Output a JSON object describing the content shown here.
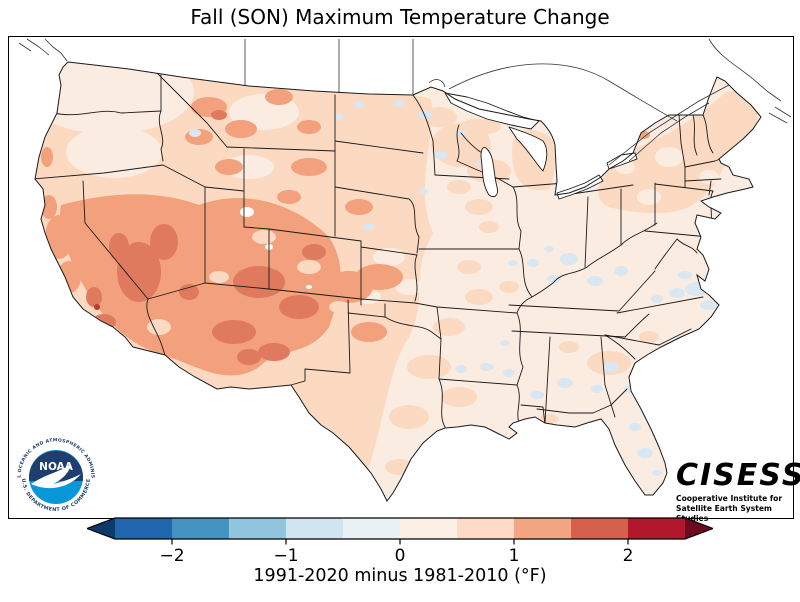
{
  "title": "Fall (SON) Maximum Temperature Change",
  "colorbar": {
    "tick_labels": [
      "−2",
      "−1",
      "0",
      "1",
      "2"
    ],
    "levels": [
      -2.5,
      -2,
      -1.5,
      -1,
      -0.5,
      0,
      0.5,
      1,
      1.5,
      2,
      2.5
    ],
    "segments": [
      "#2166ac",
      "#4393c3",
      "#92c5de",
      "#d1e5f0",
      "#eaf1f5",
      "#fcefe6",
      "#fddbc7",
      "#f4a582",
      "#d6604d",
      "#b2182b"
    ],
    "under_color": "#0b3a6b",
    "over_color": "#6d0a1e",
    "caption": "1991-2020 minus 1981-2010 (°F)"
  },
  "noaa_logo": {
    "acronym": "NOAA",
    "top_text": "NATIONAL OCEANIC AND ATMOSPHERIC ADMINISTRATION",
    "bottom_text": "U.S. DEPARTMENT OF COMMERCE",
    "dark_color": "#1d3e6f",
    "light_color": "#0a97d9"
  },
  "cisess_logo": {
    "acronym": "CISESS",
    "line1": "Cooperative Institute for",
    "line2": "Satellite Earth System Studies"
  },
  "chart_data": {
    "type": "choropleth_map",
    "title": "Fall (SON) Maximum Temperature Change",
    "variable": "Maximum temperature change, 1991-2020 normals minus 1981-2010 normals",
    "season": "SON (September-October-November)",
    "units": "°F",
    "region_shown": "Contiguous United States",
    "colormap": "RdBu_r (discrete, 0.5 °F bins, extended both ends)",
    "value_range": [
      -2.5,
      2.5
    ],
    "colorbar_ticks": [
      -2,
      -1,
      0,
      1,
      2
    ],
    "regions": [
      {
        "region": "Pacific Northwest (WA, N Idaho, NW Montana)",
        "approx_change_F": 0.25
      },
      {
        "region": "Great Basin / Southwest (NV, UT, CO, AZ, NM, S & coastal CA)",
        "approx_change_F": 1.4
      },
      {
        "region": "Strongest warming blobs (central NV, S Utah, W Colorado, N Arizona, S California)",
        "approx_change_F": 1.8
      },
      {
        "region": "Northern Rockies & High Plains (MT, WY, ID, W Dakotas, W Nebraska, W Kansas)",
        "approx_change_F": 0.9
      },
      {
        "region": "Upper Midwest (MN, WI, MI) and Northeast (NY, PA, NJ, New England, Maine)",
        "approx_change_F": 0.8
      },
      {
        "region": "Midwest / Ohio & Mississippi valleys (IA, MO, IL, IN, OH, KY, TN)",
        "approx_change_F": 0.3
      },
      {
        "region": "Southeast & Gulf (AR, LA, MS, AL, GA, SC, FL) and most of Texas",
        "approx_change_F": 0.3
      },
      {
        "region": "Scattered slight cooling patches (VA/NC coast, OH valley, GA, FL, E Texas, MN)",
        "approx_change_F": -0.3
      }
    ],
    "legend_position": "horizontal colorbar, bottom center",
    "grid": false
  }
}
